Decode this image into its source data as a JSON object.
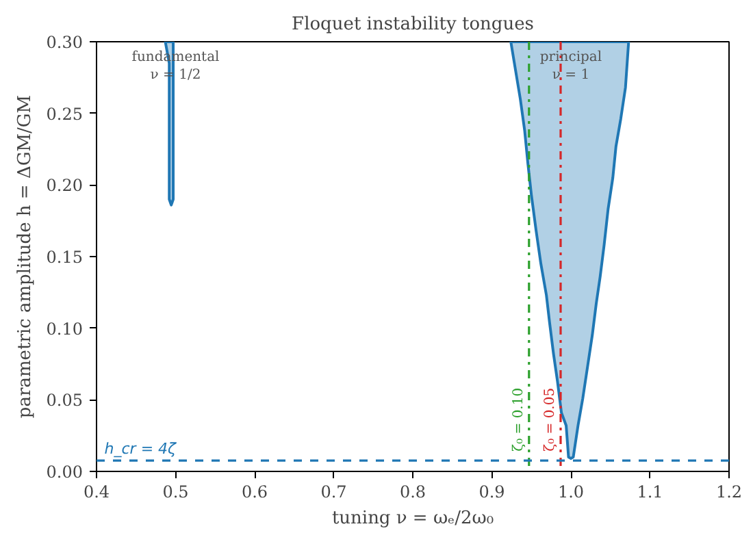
{
  "chart_data": {
    "type": "area",
    "title": "Floquet instability tongues",
    "xlabel": "tuning ν = ωₑ/2ω₀",
    "ylabel": "parametric amplitude h = ΔGM/GM",
    "xlim": [
      0.4,
      1.2
    ],
    "xticks": [
      {
        "value": 0.4,
        "label": "0.4"
      },
      {
        "value": 0.5,
        "label": "0.5"
      },
      {
        "value": 0.6,
        "label": "0.6"
      },
      {
        "value": 0.7,
        "label": "0.7"
      },
      {
        "value": 0.8,
        "label": "0.8"
      },
      {
        "value": 0.9,
        "label": "0.9"
      },
      {
        "value": 1.0,
        "label": "1.0"
      },
      {
        "value": 1.1,
        "label": "1.1"
      },
      {
        "value": 1.2,
        "label": "1.2"
      }
    ],
    "ylim": [
      0,
      0.3
    ],
    "yticks": [
      {
        "value": 0,
        "label": "0.00"
      },
      {
        "value": 0.05,
        "label": "0.05"
      },
      {
        "value": 0.1,
        "label": "0.10"
      },
      {
        "value": 0.15,
        "label": "0.15"
      },
      {
        "value": 0.2,
        "label": "0.20"
      },
      {
        "value": 0.25,
        "label": "0.25"
      },
      {
        "value": 0.3,
        "label": "0.30"
      }
    ],
    "grid": false,
    "series": [
      {
        "color": "#1f77b4",
        "x": [
          0.487,
          0.492,
          0.492,
          0.4945,
          0.497,
          0.497
        ],
        "values": [
          0.3,
          0.285,
          0.19,
          0.186,
          0.19,
          0.3
        ]
      },
      {
        "color": "#1f77b4",
        "x": [
          0.924,
          0.936,
          0.9415,
          0.9456,
          0.95,
          0.956,
          0.962,
          0.969,
          0.973,
          0.978,
          0.983,
          0.988,
          0.994,
          0.997,
          1.0,
          1.003,
          1.009,
          1.015,
          1.021,
          1.027,
          1.032,
          1.037,
          1.042,
          1.047,
          1.053,
          1.057,
          1.063,
          1.069,
          1.073
        ],
        "values": [
          0.3,
          0.26,
          0.238,
          0.215,
          0.193,
          0.168,
          0.145,
          0.123,
          0.104,
          0.082,
          0.063,
          0.041,
          0.032,
          0.01,
          0.009,
          0.01,
          0.032,
          0.051,
          0.073,
          0.095,
          0.117,
          0.136,
          0.158,
          0.183,
          0.205,
          0.227,
          0.246,
          0.268,
          0.3
        ]
      }
    ],
    "ref_lines": [
      {
        "axis": "x",
        "value": 0.947,
        "color": "#2ca02c",
        "line_style": "dashdot"
      },
      {
        "axis": "x",
        "value": 0.987,
        "color": "#d62728",
        "line_style": "dashdot"
      },
      {
        "axis": "y",
        "value": 0.0076,
        "color": "#1f77b4",
        "line_style": "dashed"
      }
    ],
    "annotations": [
      {
        "text": "fundamental\nν = 1/2",
        "x": 0.5,
        "y": 0.3
      },
      {
        "text": "principal\nν = 1",
        "x": 1.0,
        "y": 0.3
      },
      {
        "text": "ζ₀ = 0.10",
        "x": 0.947,
        "y": 0.014
      },
      {
        "text": "ζ₀ = 0.05",
        "x": 0.987,
        "y": 0.014
      },
      {
        "text": "h_cr = 4ζ",
        "x": 0.41,
        "y": 0.0076
      }
    ]
  }
}
